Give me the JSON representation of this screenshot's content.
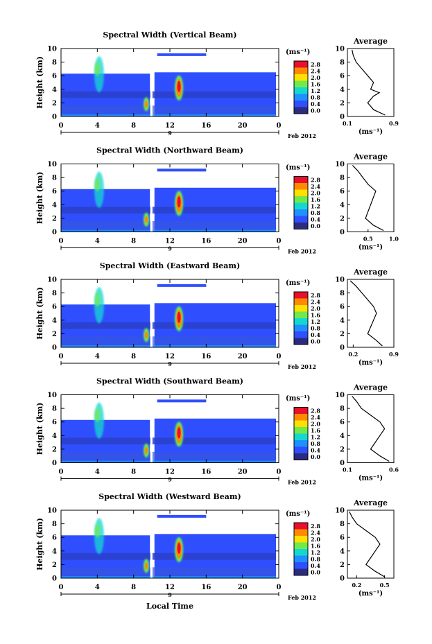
{
  "footer": {
    "xlabel": "Local Time",
    "date_label": "Feb 2012",
    "day_label": "9"
  },
  "colorbar": {
    "unit": "(ms⁻¹)",
    "ticks": [
      "2.8",
      "2.4",
      "2.0",
      "1.6",
      "1.2",
      "0.8",
      "0.4",
      "0.0"
    ],
    "colors": [
      "#e8102a",
      "#ff8a00",
      "#ffe000",
      "#6fea4a",
      "#14d8d0",
      "#1f90ff",
      "#2f4fff",
      "#2b2b80"
    ]
  },
  "chart_data": [
    {
      "type": "heatmap",
      "title": "Spectral Width (Vertical Beam)",
      "ylabel": "Height (km)",
      "xlabel": "Local Time",
      "x_ticks": [
        "0",
        "4",
        "8",
        "12",
        "16",
        "20",
        "0"
      ],
      "y_ticks": [
        "0",
        "2",
        "4",
        "6",
        "8",
        "10"
      ],
      "xlim": [
        0,
        24
      ],
      "ylim": [
        0,
        10
      ],
      "profile": {
        "title": "Average",
        "xlabel": "(ms⁻¹)",
        "x_ticks": [
          "0.1",
          "0.9"
        ],
        "xlim": [
          0.1,
          0.9
        ],
        "y_ticks": [
          "0",
          "2",
          "4",
          "6",
          "8",
          "10"
        ],
        "height": [
          0.2,
          1,
          2,
          3,
          3.5,
          4,
          5,
          6,
          7,
          8,
          9,
          9.8
        ],
        "value": [
          0.75,
          0.55,
          0.45,
          0.55,
          0.65,
          0.5,
          0.55,
          0.45,
          0.35,
          0.25,
          0.2,
          0.18
        ]
      }
    },
    {
      "type": "heatmap",
      "title": "Spectral Width (Northward Beam)",
      "ylabel": "Height (km)",
      "xlabel": "Local Time",
      "x_ticks": [
        "0",
        "4",
        "8",
        "12",
        "16",
        "20",
        "0"
      ],
      "y_ticks": [
        "0",
        "2",
        "4",
        "6",
        "8",
        "10"
      ],
      "xlim": [
        0,
        24
      ],
      "ylim": [
        0,
        10
      ],
      "profile": {
        "title": "Average",
        "xlabel": "(ms⁻¹)",
        "x_ticks": [
          "0.5",
          "1.0"
        ],
        "xlim": [
          0.1,
          1.0
        ],
        "y_ticks": [
          "0",
          "2",
          "4",
          "6",
          "8",
          "10"
        ],
        "height": [
          0.2,
          1,
          2,
          3,
          4,
          5,
          6,
          7,
          8,
          9,
          9.8
        ],
        "value": [
          0.8,
          0.6,
          0.45,
          0.5,
          0.55,
          0.6,
          0.65,
          0.5,
          0.4,
          0.3,
          0.2
        ]
      }
    },
    {
      "type": "heatmap",
      "title": "Spectral Width (Eastward Beam)",
      "ylabel": "Height (km)",
      "xlabel": "Local Time",
      "x_ticks": [
        "0",
        "4",
        "8",
        "12",
        "16",
        "20",
        "0"
      ],
      "y_ticks": [
        "0",
        "2",
        "4",
        "6",
        "8",
        "10"
      ],
      "xlim": [
        0,
        24
      ],
      "ylim": [
        0,
        10
      ],
      "profile": {
        "title": "Average",
        "xlabel": "(ms⁻¹)",
        "x_ticks": [
          "0.2",
          "0.9"
        ],
        "xlim": [
          0.1,
          0.9
        ],
        "y_ticks": [
          "0",
          "2",
          "4",
          "6",
          "8",
          "10"
        ],
        "height": [
          0.2,
          1,
          2,
          3,
          4,
          5,
          6,
          7,
          8,
          9,
          9.8
        ],
        "value": [
          0.7,
          0.6,
          0.45,
          0.5,
          0.55,
          0.6,
          0.55,
          0.45,
          0.35,
          0.25,
          0.15
        ]
      }
    },
    {
      "type": "heatmap",
      "title": "Spectral Width (Southward Beam)",
      "ylabel": "Height (km)",
      "xlabel": "Local Time",
      "x_ticks": [
        "0",
        "4",
        "8",
        "12",
        "16",
        "20",
        "0"
      ],
      "y_ticks": [
        "0",
        "2",
        "4",
        "6",
        "8",
        "10"
      ],
      "xlim": [
        0,
        24
      ],
      "ylim": [
        0,
        10
      ],
      "profile": {
        "title": "Average",
        "xlabel": "(ms⁻¹)",
        "x_ticks": [
          "0.1",
          "0.6"
        ],
        "xlim": [
          0.1,
          0.6
        ],
        "y_ticks": [
          "0",
          "2",
          "4",
          "6",
          "8",
          "10"
        ],
        "height": [
          0.2,
          1,
          2,
          3,
          4,
          5,
          6,
          7,
          8,
          9,
          9.8
        ],
        "value": [
          0.55,
          0.45,
          0.35,
          0.4,
          0.45,
          0.5,
          0.45,
          0.35,
          0.25,
          0.2,
          0.15
        ]
      }
    },
    {
      "type": "heatmap",
      "title": "Spectral Width (Westward Beam)",
      "ylabel": "Height (km)",
      "xlabel": "Local Time",
      "x_ticks": [
        "0",
        "4",
        "8",
        "12",
        "16",
        "20",
        "0"
      ],
      "y_ticks": [
        "0",
        "2",
        "4",
        "6",
        "8",
        "10"
      ],
      "xlim": [
        0,
        24
      ],
      "ylim": [
        0,
        10
      ],
      "profile": {
        "title": "Average",
        "xlabel": "(ms⁻¹)",
        "x_ticks": [
          "0.2",
          "0.5"
        ],
        "xlim": [
          0.1,
          0.6
        ],
        "y_ticks": [
          "0",
          "2",
          "4",
          "6",
          "8",
          "10"
        ],
        "height": [
          0.2,
          1,
          2,
          3,
          4,
          5,
          6,
          7,
          8,
          9,
          9.8
        ],
        "value": [
          0.5,
          0.4,
          0.3,
          0.35,
          0.4,
          0.45,
          0.4,
          0.3,
          0.2,
          0.15,
          0.12
        ]
      }
    }
  ]
}
